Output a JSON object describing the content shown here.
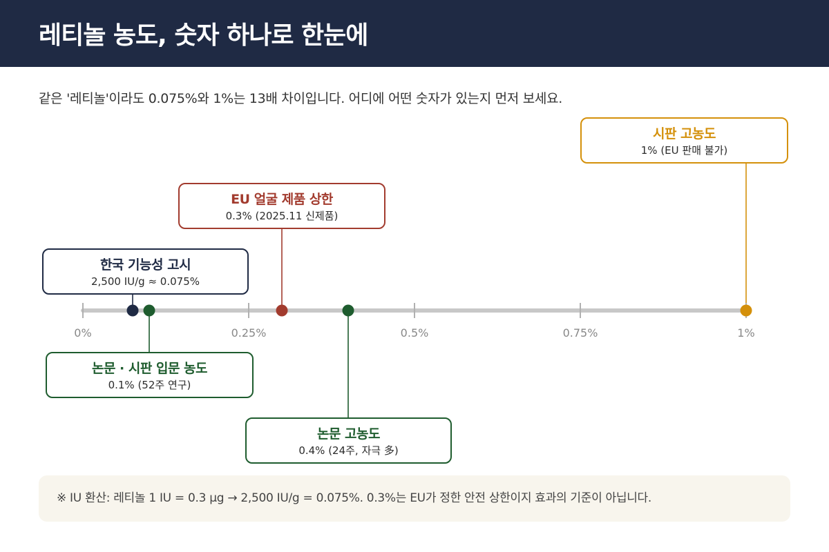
{
  "title": "레티놀 농도, 숫자 하나로 한눈에",
  "subtitle": "같은 '레티놀'이라도 0.075%와 1%는 13배 차이입니다. 어디에 어떤 숫자가 있는지 먼저 보세요.",
  "scale": {
    "min": 0,
    "max": 1,
    "ticks": [
      {
        "value": 0,
        "label": "0%"
      },
      {
        "value": 0.25,
        "label": "0.25%"
      },
      {
        "value": 0.5,
        "label": "0.5%"
      },
      {
        "value": 0.75,
        "label": "0.75%"
      },
      {
        "value": 1,
        "label": "1%"
      }
    ]
  },
  "colors": {
    "navy": "#1f2a44",
    "red": "#a23b2e",
    "green": "#1e5c2e",
    "gold": "#d4900a",
    "axis": "#c8c8c8",
    "tick_label": "#888888"
  },
  "markers": [
    {
      "id": "korea",
      "value": 0.075,
      "color": "navy",
      "title": "한국 기능성 고시",
      "detail": "2,500 IU/g ≈ 0.075%"
    },
    {
      "id": "paper-entry",
      "value": 0.1,
      "color": "green",
      "title": "논문 · 시판 입문 농도",
      "detail": "0.1% (52주 연구)"
    },
    {
      "id": "eu-face",
      "value": 0.3,
      "color": "red",
      "title": "EU 얼굴 제품 상한",
      "detail": "0.3% (2025.11 신제품)"
    },
    {
      "id": "paper-high",
      "value": 0.4,
      "color": "green",
      "title": "논문 고농도",
      "detail": "0.4% (24주, 자극 多)"
    },
    {
      "id": "market-high",
      "value": 1,
      "color": "gold",
      "title": "시판 고농도",
      "detail": "1% (EU 판매 불가)"
    }
  ],
  "note": "※ IU 환산: 레티놀 1 IU = 0.3 μg → 2,500 IU/g = 0.075%.  0.3%는 EU가 정한 안전 상한이지 효과의 기준이 아닙니다."
}
